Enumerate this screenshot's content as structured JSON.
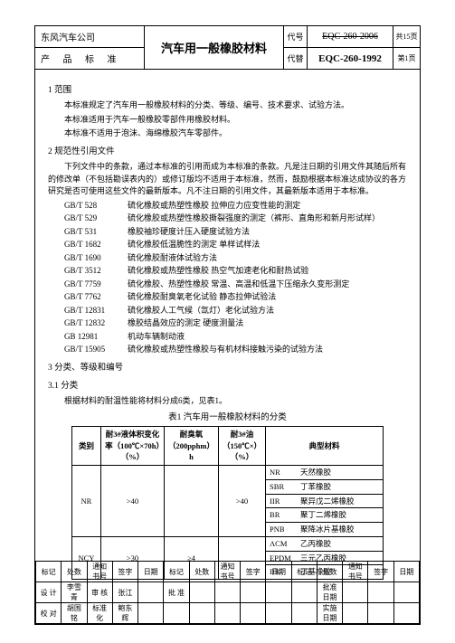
{
  "header": {
    "company": "东风汽车公司",
    "std_label": "产 品 标 准",
    "title": "汽车用一般橡胶材料",
    "code_lab1": "代号",
    "code_lab2": "代替",
    "code_old": "EQC-260-2006",
    "code_new": "EQC-260-1992",
    "pages_total": "共15页",
    "page_no": "第1页"
  },
  "sec1": {
    "h": "1 范围",
    "p1": "本标准规定了汽车用一般橡胶材料的分类、等级、编号、技术要求、试验方法。",
    "p2": "本标准适用于汽车一般橡胶零部件用橡胶材料。",
    "p3": "本标准不适用于泡沫、海绵橡胶汽车零部件。"
  },
  "sec2": {
    "h": "2 规范性引用文件",
    "p1": "下列文件中的条款，通过本标准的引用而成为本标准的条款。凡是注日期的引用文件其随后所有的修改单（不包括勘误表内的）或修订版均不适用于本标准，然而，鼓励根据本标准达成协议的各方研究是否可使用这些文件的最新版本。凡不注日期的引用文件，其最新版本适用于本标准。",
    "refs": [
      {
        "code": "GB/T 528",
        "title": "硫化橡胶或热塑性橡胶 拉伸应力应变性能的测定"
      },
      {
        "code": "GB/T 529",
        "title": "硫化橡胶或热塑性橡胶撕裂强度的测定（裤形、直角形和新月形试样）"
      },
      {
        "code": "GB/T 531",
        "title": "橡胶袖珍硬度计压入硬度试验方法"
      },
      {
        "code": "GB/T 1682",
        "title": "硫化橡胶低温脆性的测定 单样试样法"
      },
      {
        "code": "GB/T 1690",
        "title": "硫化橡胶耐液体试验方法"
      },
      {
        "code": "GB/T 3512",
        "title": "硫化橡胶或热塑性橡胶 热空气加速老化和耐热试验"
      },
      {
        "code": "GB/T 7759",
        "title": "硫化橡胶、热塑性橡胶 常温、高温和低温下压缩永久变形测定"
      },
      {
        "code": "GB/T 7762",
        "title": "硫化橡胶耐臭氧老化试验 静态拉伸试验法"
      },
      {
        "code": "GB/T 12831",
        "title": "硫化橡胶人工气候（氙灯）老化试验方法"
      },
      {
        "code": "GB/T 12832",
        "title": "橡胶结晶效应的测定 硬度测量法"
      },
      {
        "code": "GB 12981",
        "title": "机动车辆制动液"
      },
      {
        "code": "GB/T 15905",
        "title": "硫化橡胶或热塑性橡胶与有机材料接触污染的试验方法"
      }
    ]
  },
  "sec3": {
    "h": "3 分类、等级和编号",
    "h31": "3.1 分类",
    "p31": "根据材料的耐温性能将材料分成6类，见表1。",
    "tbl_title": "表1 汽车用一般橡胶材料的分类",
    "tbl": {
      "head": {
        "c1": "类别",
        "c2": "耐3#液体积变化率（100℃×70h）（%）",
        "c3": "耐臭氧（200pphm）h",
        "c4": "耐3#油（150℃×）（%）",
        "c5": "典型材料"
      },
      "rows": [
        {
          "cat": "NR",
          "v2": ">40",
          "v3": "",
          "v4": ">40",
          "mats": [
            {
              "code": "NR",
              "name": "天然橡胶"
            },
            {
              "code": "SBR",
              "name": "丁苯橡胶"
            },
            {
              "code": "IIR",
              "name": "聚异戊二烯橡胶"
            },
            {
              "code": "BR",
              "name": "聚丁二烯橡胶"
            },
            {
              "code": "PNB",
              "name": "聚降冰片基橡胶"
            }
          ]
        },
        {
          "cat": "NCY",
          "v2": ">30",
          "v3": "≥4",
          "v4": "",
          "mats": [
            {
              "code": "ACM",
              "name": "乙丙橡胶"
            },
            {
              "code": "EPDM",
              "name": "三元乙丙橡胶"
            },
            {
              "code": "IIR",
              "name": "丁基橡胶"
            }
          ]
        }
      ]
    }
  },
  "sig": {
    "r1": [
      "标记",
      "处数",
      "通知书号",
      "签字",
      "日期",
      "标记",
      "处数",
      "通知书号",
      "签字",
      "日期",
      "标记",
      "处数",
      "通知书号",
      "签字",
      "日期"
    ],
    "r2": [
      "设 计",
      "李雪青",
      "审 核",
      "张江",
      "",
      "批 准",
      "",
      "",
      "",
      "",
      "",
      "批准日期",
      "",
      "",
      ""
    ],
    "r3": [
      "校 对",
      "胡国铭",
      "标准化",
      "鲍东辉",
      "",
      "",
      "",
      "",
      "",
      "",
      "",
      "实施日期",
      "",
      "",
      ""
    ]
  }
}
